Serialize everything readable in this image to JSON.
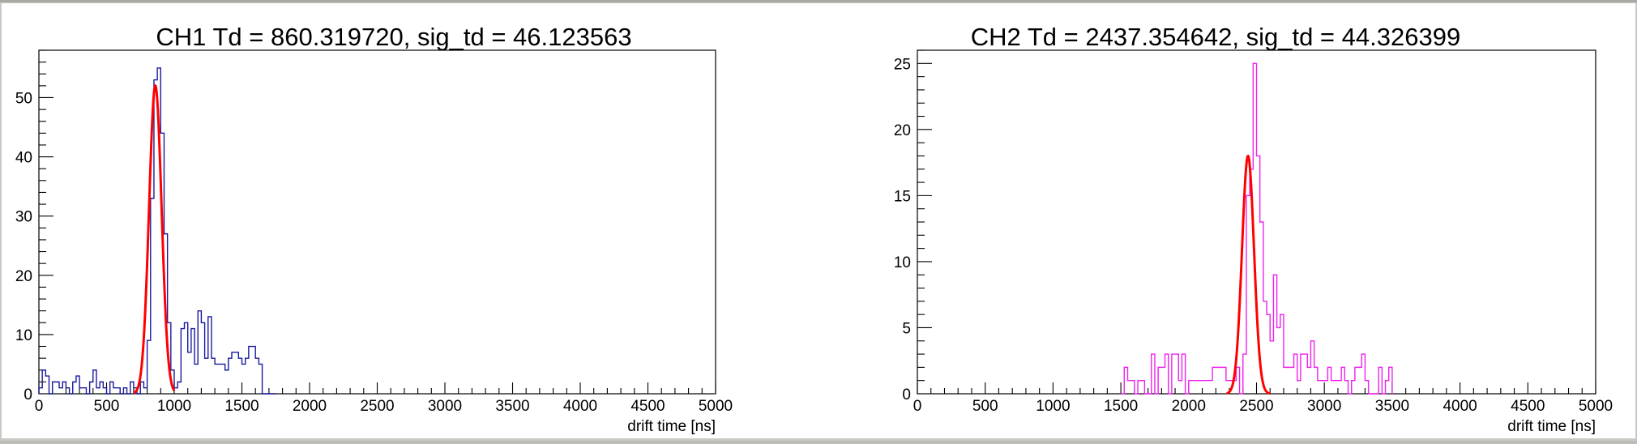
{
  "chart_data": [
    {
      "type": "histogram",
      "title": "CH1 Td = 860.319720, sig_td = 46.123563",
      "xlabel": "drift time [ns]",
      "ylabel": "",
      "xlim": [
        0,
        5000
      ],
      "ylim": [
        0,
        58
      ],
      "xticks": [
        0,
        500,
        1000,
        1500,
        2000,
        2500,
        3000,
        3500,
        4000,
        4500,
        5000
      ],
      "xtick_labels": [
        "0",
        "500",
        "1000",
        "1500",
        "2000",
        "2500",
        "3000",
        "3500",
        "4000",
        "4500",
        "5000"
      ],
      "yticks": [
        0,
        10,
        20,
        30,
        40,
        50
      ],
      "ytick_labels": [
        "0",
        "10",
        "20",
        "30",
        "40",
        "50"
      ],
      "bin_width": 25,
      "series": [
        {
          "color": "#1a1a9e",
          "x_start": 0,
          "values": [
            1,
            4,
            3,
            0,
            2,
            2,
            1,
            2,
            1,
            0,
            2,
            3,
            1,
            1,
            0,
            2,
            4,
            1,
            2,
            1,
            0,
            2,
            1,
            1,
            0,
            1,
            0,
            2,
            1,
            0,
            2,
            1,
            9,
            33,
            53,
            55,
            44,
            27,
            12,
            4,
            1,
            2,
            11,
            12,
            7,
            11,
            5,
            14,
            12,
            6,
            13,
            6,
            5,
            5,
            5,
            4,
            6,
            7,
            7,
            6,
            5,
            6,
            8,
            8,
            6,
            5,
            0,
            0,
            0,
            0
          ]
        }
      ],
      "fit": {
        "type": "gaussian",
        "color": "#ff0000",
        "mean": 860.32,
        "sigma": 46.12,
        "amplitude": 52,
        "range": [
          700,
          1000
        ]
      }
    },
    {
      "type": "histogram",
      "title": "CH2 Td = 2437.354642, sig_td = 44.326399",
      "xlabel": "drift time [ns]",
      "ylabel": "",
      "xlim": [
        0,
        5000
      ],
      "ylim": [
        0,
        26
      ],
      "xticks": [
        0,
        500,
        1000,
        1500,
        2000,
        2500,
        3000,
        3500,
        4000,
        4500,
        5000
      ],
      "xtick_labels": [
        "0",
        "500",
        "1000",
        "1500",
        "2000",
        "2500",
        "3000",
        "3500",
        "4000",
        "4500",
        "5000"
      ],
      "yticks": [
        0,
        5,
        10,
        15,
        20,
        25
      ],
      "ytick_labels": [
        "0",
        "5",
        "10",
        "15",
        "20",
        "25"
      ],
      "bin_width": 25,
      "series": [
        {
          "color": "#ee22ee",
          "x_start": 1500,
          "values": [
            0,
            2,
            1,
            1,
            0,
            1,
            1,
            0,
            0,
            3,
            0,
            2,
            2,
            3,
            0,
            3,
            3,
            1,
            3,
            0,
            1,
            1,
            1,
            1,
            1,
            1,
            1,
            2,
            2,
            2,
            2,
            1,
            1,
            1,
            2,
            0,
            3,
            15,
            17,
            25,
            18,
            13,
            7,
            6,
            4,
            9,
            5,
            6,
            2,
            2,
            2,
            3,
            1,
            3,
            3,
            2,
            4,
            2,
            1,
            1,
            1,
            2,
            1,
            1,
            1,
            2,
            1,
            0,
            1,
            2,
            2,
            3,
            1,
            0,
            0,
            0,
            2,
            0,
            1,
            2
          ]
        }
      ],
      "fit": {
        "type": "gaussian",
        "color": "#ff0000",
        "mean": 2437.35,
        "sigma": 44.33,
        "amplitude": 18,
        "range": [
          2280,
          2600
        ]
      }
    }
  ]
}
